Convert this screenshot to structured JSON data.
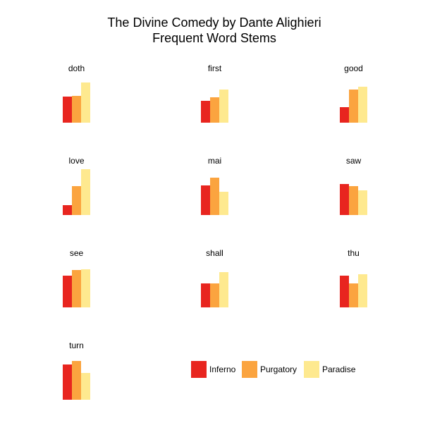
{
  "chart_data": {
    "type": "bar",
    "title": "The Divine Comedy by Dante Alighieri",
    "subtitle": "Frequent Word Stems",
    "categories": [
      "doth",
      "first",
      "good",
      "love",
      "mai",
      "saw",
      "see",
      "shall",
      "thu",
      "turn"
    ],
    "series": [
      {
        "name": "Inferno",
        "color": "#e8251f",
        "values": [
          37,
          31,
          22,
          14,
          42,
          44,
          45,
          34,
          45,
          50
        ]
      },
      {
        "name": "Purgatory",
        "color": "#fba43f",
        "values": [
          38,
          36,
          47,
          41,
          53,
          41,
          53,
          34,
          34,
          55
        ]
      },
      {
        "name": "Paradise",
        "color": "#fee98f",
        "values": [
          57,
          47,
          51,
          65,
          33,
          35,
          54,
          50,
          47,
          38
        ]
      }
    ],
    "ylim": [
      0,
      65
    ]
  }
}
